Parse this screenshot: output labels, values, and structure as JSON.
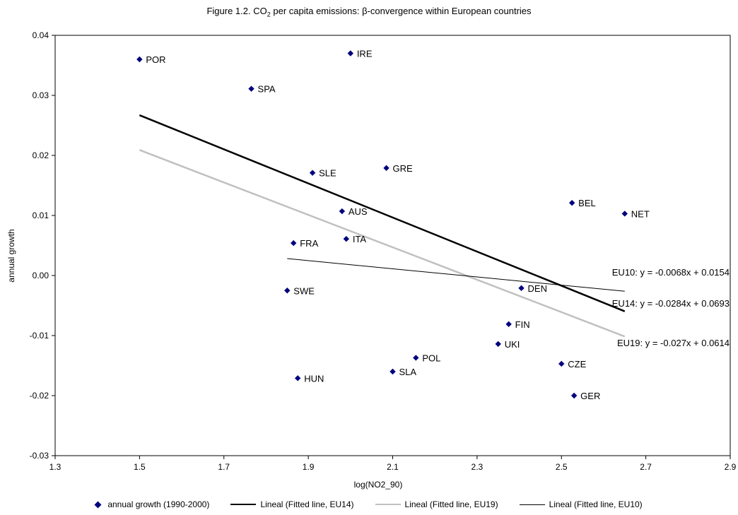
{
  "title": {
    "prefix": "Figure 1.2. CO",
    "subscript": "2",
    "suffix": " per capita emissions: β-convergence within European countries"
  },
  "chart_data": {
    "type": "scatter",
    "xlabel": "log(NO2_90)",
    "ylabel": "annual growth",
    "xlim": [
      1.3,
      2.9
    ],
    "ylim": [
      -0.03,
      0.04
    ],
    "xticks": [
      1.3,
      1.5,
      1.7,
      1.9,
      2.1,
      2.3,
      2.5,
      2.7,
      2.9
    ],
    "yticks": [
      -0.03,
      -0.02,
      -0.01,
      0.0,
      0.01,
      0.02,
      0.03,
      0.04
    ],
    "xtick_labels": [
      "1.3",
      "1.5",
      "1.7",
      "1.9",
      "2.1",
      "2.3",
      "2.5",
      "2.7",
      "2.9"
    ],
    "ytick_labels": [
      "-0.03",
      "-0.02",
      "-0.01",
      "0.00",
      "0.01",
      "0.02",
      "0.03",
      "0.04"
    ],
    "grid": false,
    "legend_position": "bottom",
    "series": [
      {
        "name": "annual growth (1990-2000)",
        "kind": "points",
        "color": "#00007f",
        "points": [
          {
            "label": "POR",
            "x": 1.5,
            "y": 0.036
          },
          {
            "label": "IRE",
            "x": 2.0,
            "y": 0.037
          },
          {
            "label": "SPA",
            "x": 1.765,
            "y": 0.0311
          },
          {
            "label": "SLE",
            "x": 1.91,
            "y": 0.0171
          },
          {
            "label": "GRE",
            "x": 2.085,
            "y": 0.0179
          },
          {
            "label": "BEL",
            "x": 2.525,
            "y": 0.0121
          },
          {
            "label": "NET",
            "x": 2.65,
            "y": 0.0103
          },
          {
            "label": "AUS",
            "x": 1.98,
            "y": 0.0107
          },
          {
            "label": "FRA",
            "x": 1.865,
            "y": 0.0054
          },
          {
            "label": "ITA",
            "x": 1.99,
            "y": 0.0061
          },
          {
            "label": "SWE",
            "x": 1.85,
            "y": -0.0025
          },
          {
            "label": "DEN",
            "x": 2.405,
            "y": -0.0021
          },
          {
            "label": "FIN",
            "x": 2.375,
            "y": -0.0081
          },
          {
            "label": "UKI",
            "x": 2.35,
            "y": -0.0114
          },
          {
            "label": "POL",
            "x": 2.155,
            "y": -0.0137
          },
          {
            "label": "CZE",
            "x": 2.5,
            "y": -0.0147
          },
          {
            "label": "SLA",
            "x": 2.1,
            "y": -0.016
          },
          {
            "label": "HUN",
            "x": 1.875,
            "y": -0.0171
          },
          {
            "label": "GER",
            "x": 2.53,
            "y": -0.02
          }
        ]
      },
      {
        "name": "Lineal (Fitted line, EU14)",
        "kind": "line",
        "color": "#000000",
        "width": 2.5,
        "x": [
          1.5,
          2.65
        ],
        "slope": -0.0284,
        "intercept": 0.0693,
        "equation": "EU14: y = -0.0284x + 0.0693"
      },
      {
        "name": "Lineal (Fitted line, EU19)",
        "kind": "line",
        "color": "#c0c0c0",
        "width": 2.5,
        "x": [
          1.5,
          2.65
        ],
        "slope": -0.027,
        "intercept": 0.0614,
        "equation": "EU19: y = -0.027x + 0.0614"
      },
      {
        "name": "Lineal (Fitted line, EU10)",
        "kind": "line",
        "color": "#000000",
        "width": 1,
        "x": [
          1.85,
          2.65
        ],
        "slope": -0.0068,
        "intercept": 0.0154,
        "equation": "EU10: y = -0.0068x + 0.0154"
      }
    ]
  }
}
